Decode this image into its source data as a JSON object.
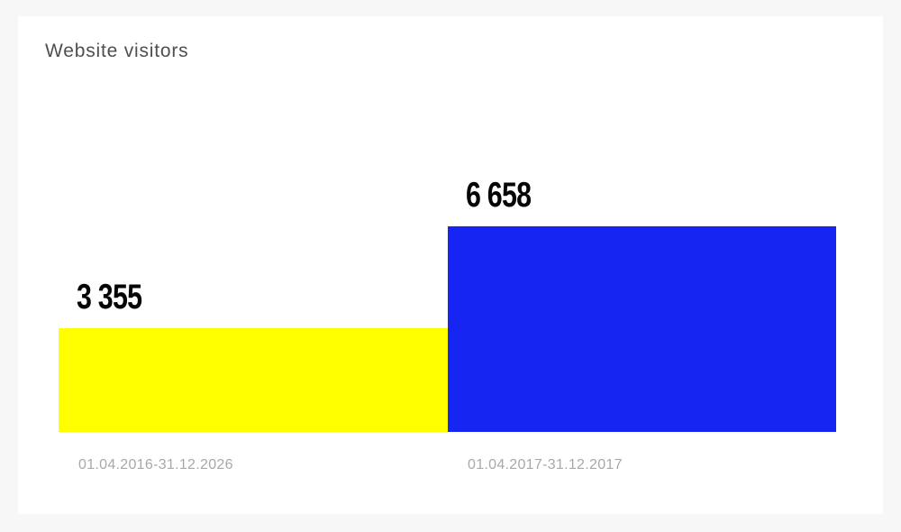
{
  "page": {
    "background_color": "#f7f7f7",
    "card_color": "#ffffff"
  },
  "chart_data": {
    "type": "bar",
    "title": "Website visitors",
    "categories": [
      "01.04.2016-31.12.2026",
      "01.04.2017-31.12.2017"
    ],
    "values": [
      3355,
      6658
    ],
    "bars": [
      {
        "value": 3355,
        "value_label": "3 355",
        "category": "01.04.2016-31.12.2026",
        "color": "#ffff00"
      },
      {
        "value": 6658,
        "value_label": "6 658",
        "category": "01.04.2017-31.12.2017",
        "color": "#1725f2"
      }
    ],
    "ylim": [
      0,
      6658
    ],
    "xlabel": "",
    "ylabel": "",
    "grid": false,
    "legend": "none",
    "title_color": "#4d4f52",
    "value_label_color": "#050505",
    "category_label_color": "#a8a8a8"
  }
}
